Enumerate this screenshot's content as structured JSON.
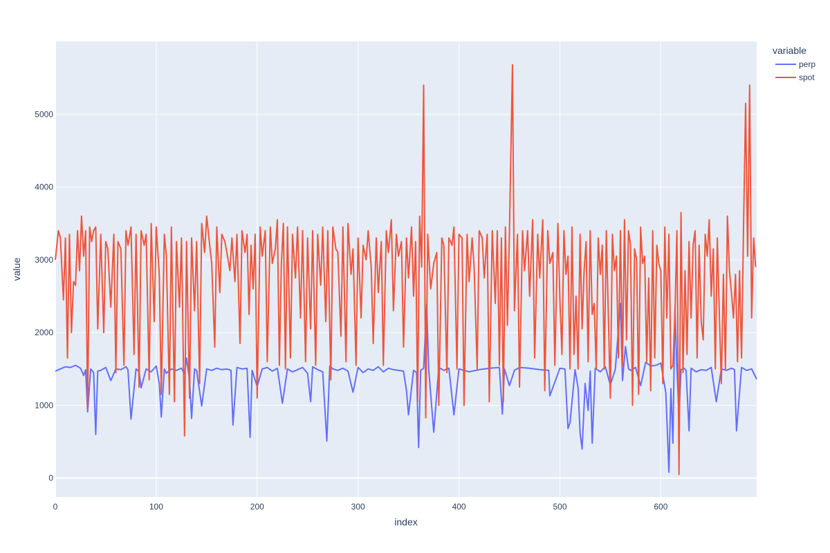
{
  "chart_data": {
    "type": "line",
    "xlabel": "index",
    "ylabel": "value",
    "xlim": [
      0,
      695
    ],
    "ylim": [
      -260,
      6000
    ],
    "x_ticks": [
      0,
      100,
      200,
      300,
      400,
      500,
      600
    ],
    "y_ticks": [
      0,
      1000,
      2000,
      3000,
      4000,
      5000
    ],
    "grid": true,
    "legend": {
      "title": "variable",
      "position": "top-right"
    },
    "colors": {
      "plot_bg": "#e5ecf6",
      "grid": "#ffffff",
      "perp": "#636efa",
      "spot": "#ef553b"
    },
    "series": [
      {
        "name": "perp",
        "x": [
          0,
          5,
          10,
          15,
          20,
          25,
          28,
          30,
          32,
          35,
          38,
          40,
          42,
          45,
          50,
          55,
          60,
          65,
          70,
          72,
          75,
          80,
          83,
          85,
          90,
          95,
          100,
          103,
          105,
          108,
          110,
          115,
          120,
          125,
          128,
          130,
          133,
          135,
          138,
          140,
          145,
          150,
          155,
          160,
          165,
          170,
          174,
          176,
          180,
          185,
          190,
          193,
          195,
          200,
          205,
          210,
          215,
          220,
          225,
          230,
          235,
          240,
          245,
          250,
          253,
          255,
          260,
          265,
          269,
          272,
          275,
          280,
          285,
          290,
          295,
          300,
          305,
          310,
          315,
          320,
          325,
          330,
          335,
          340,
          345,
          348,
          350,
          355,
          358,
          360,
          362,
          365,
          368,
          370,
          375,
          380,
          385,
          390,
          395,
          400,
          410,
          420,
          430,
          440,
          443,
          445,
          450,
          455,
          460,
          470,
          480,
          489,
          490,
          500,
          505,
          508,
          510,
          515,
          518,
          520,
          522,
          525,
          528,
          530,
          532,
          535,
          540,
          545,
          550,
          555,
          560,
          562,
          565,
          568,
          570,
          575,
          580,
          585,
          590,
          595,
          600,
          605,
          608,
          610,
          612,
          614,
          616,
          618,
          620,
          623,
          625,
          628,
          630,
          635,
          640,
          645,
          650,
          655,
          660,
          665,
          670,
          673,
          675,
          680,
          685,
          690,
          695
        ],
        "values": [
          1470,
          1500,
          1530,
          1520,
          1550,
          1510,
          1410,
          1490,
          910,
          1500,
          1450,
          600,
          1470,
          1480,
          1520,
          1340,
          1500,
          1490,
          1530,
          1490,
          810,
          1500,
          1460,
          1240,
          1500,
          1460,
          1540,
          1300,
          840,
          1500,
          1440,
          1500,
          1480,
          1510,
          1430,
          1650,
          1350,
          820,
          1500,
          1480,
          990,
          1500,
          1480,
          1510,
          1490,
          1500,
          1480,
          730,
          1520,
          1500,
          1510,
          560,
          1480,
          1260,
          1500,
          1520,
          1470,
          1510,
          1030,
          1500,
          1460,
          1490,
          1520,
          1440,
          1050,
          1530,
          1490,
          1460,
          510,
          1540,
          1500,
          1480,
          1510,
          1470,
          1180,
          1520,
          1450,
          1500,
          1480,
          1530,
          1460,
          1510,
          1490,
          1480,
          1470,
          1200,
          870,
          1480,
          1450,
          420,
          1480,
          1510,
          2390,
          1500,
          630,
          1520,
          1480,
          1510,
          870,
          1500,
          1460,
          1490,
          1510,
          1520,
          880,
          1500,
          1270,
          1480,
          1520,
          1510,
          1490,
          1480,
          1130,
          1510,
          1500,
          680,
          760,
          1490,
          1240,
          620,
          400,
          1300,
          930,
          1470,
          480,
          1510,
          1460,
          1530,
          1280,
          1500,
          2400,
          1340,
          1810,
          1500,
          1480,
          1520,
          1270,
          1590,
          1540,
          1550,
          1580,
          1170,
          80,
          1230,
          480,
          2330,
          1500,
          850,
          1490,
          1510,
          1480,
          650,
          1510,
          1460,
          1490,
          1480,
          1520,
          1050,
          1500,
          1480,
          1510,
          1490,
          650,
          1520,
          1480,
          1500,
          1360
        ]
      },
      {
        "name": "spot",
        "x": [
          0,
          3,
          5,
          8,
          10,
          12,
          14,
          16,
          18,
          20,
          22,
          24,
          26,
          28,
          30,
          32,
          34,
          36,
          38,
          40,
          42,
          45,
          48,
          50,
          52,
          55,
          58,
          60,
          62,
          65,
          68,
          70,
          72,
          75,
          78,
          80,
          83,
          85,
          88,
          90,
          93,
          95,
          98,
          100,
          103,
          105,
          108,
          110,
          113,
          115,
          118,
          120,
          123,
          125,
          128,
          130,
          133,
          135,
          138,
          140,
          143,
          145,
          148,
          150,
          153,
          155,
          158,
          160,
          163,
          165,
          168,
          170,
          173,
          175,
          178,
          180,
          183,
          185,
          188,
          190,
          192,
          194,
          196,
          198,
          200,
          203,
          205,
          208,
          210,
          213,
          215,
          218,
          220,
          222,
          224,
          226,
          228,
          230,
          233,
          235,
          238,
          240,
          243,
          245,
          248,
          250,
          253,
          255,
          258,
          260,
          263,
          265,
          268,
          270,
          273,
          275,
          278,
          280,
          283,
          285,
          288,
          290,
          293,
          295,
          298,
          300,
          303,
          305,
          308,
          310,
          313,
          315,
          318,
          320,
          323,
          325,
          328,
          330,
          333,
          335,
          338,
          340,
          343,
          345,
          348,
          350,
          353,
          355,
          357,
          359,
          361,
          363,
          365,
          367,
          369,
          372,
          375,
          378,
          380,
          383,
          385,
          388,
          390,
          393,
          395,
          398,
          400,
          403,
          405,
          408,
          410,
          413,
          415,
          418,
          420,
          423,
          425,
          428,
          430,
          433,
          436,
          438,
          440,
          442,
          444,
          446,
          448,
          450,
          453,
          455,
          458,
          460,
          463,
          465,
          468,
          470,
          473,
          475,
          478,
          480,
          483,
          485,
          488,
          490,
          493,
          495,
          498,
          500,
          502,
          504,
          506,
          508,
          510,
          512,
          514,
          516,
          518,
          520,
          522,
          524,
          526,
          528,
          530,
          532,
          534,
          536,
          538,
          540,
          542,
          544,
          546,
          548,
          550,
          552,
          554,
          556,
          558,
          560,
          562,
          564,
          566,
          568,
          570,
          572,
          574,
          576,
          578,
          580,
          582,
          584,
          586,
          588,
          590,
          592,
          594,
          596,
          598,
          600,
          602,
          604,
          606,
          608,
          610,
          612,
          614,
          616,
          618,
          620,
          622,
          624,
          626,
          628,
          630,
          632,
          634,
          636,
          638,
          640,
          642,
          644,
          646,
          648,
          650,
          652,
          654,
          656,
          658,
          660,
          662,
          664,
          666,
          668,
          670,
          672,
          674,
          676,
          678,
          680,
          682,
          684,
          686,
          688,
          690,
          692,
          694
        ],
        "values": [
          3000,
          3400,
          3300,
          2450,
          3300,
          1650,
          3350,
          2000,
          2700,
          2650,
          3400,
          2850,
          3600,
          3050,
          3400,
          950,
          3450,
          3250,
          3400,
          3450,
          2050,
          3350,
          2000,
          3250,
          3150,
          2350,
          3350,
          1450,
          3250,
          3150,
          1550,
          3400,
          3200,
          3450,
          1700,
          3350,
          1250,
          3400,
          3200,
          3350,
          1350,
          3500,
          2150,
          3450,
          2800,
          1150,
          3350,
          3050,
          1150,
          3450,
          1050,
          3250,
          2350,
          3300,
          580,
          3250,
          1100,
          3300,
          2300,
          3250,
          1300,
          3500,
          3100,
          3600,
          3200,
          2950,
          1800,
          3450,
          2550,
          3350,
          3250,
          3100,
          2850,
          3300,
          2700,
          3350,
          1850,
          3400,
          3100,
          3350,
          2250,
          3200,
          2600,
          3350,
          1100,
          3450,
          3050,
          3400,
          1600,
          3450,
          2950,
          3150,
          3550,
          1550,
          2950,
          3500,
          1500,
          3450,
          1650,
          3350,
          2750,
          3450,
          2200,
          3400,
          1600,
          3300,
          2050,
          3400,
          1550,
          3350,
          2650,
          3450,
          2150,
          3400,
          1350,
          3450,
          3150,
          3100,
          1950,
          3450,
          1600,
          3500,
          2800,
          3150,
          1550,
          3300,
          2200,
          3200,
          3000,
          3400,
          2900,
          1850,
          3300,
          2550,
          3250,
          1550,
          3400,
          3100,
          3550,
          2300,
          3350,
          3050,
          3250,
          1800,
          3300,
          2750,
          3450,
          2500,
          3250,
          1050,
          3600,
          2900,
          5400,
          830,
          3350,
          2600,
          2950,
          3100,
          1000,
          3300,
          3200,
          1450,
          3300,
          3200,
          3450,
          1500,
          3350,
          3300,
          1000,
          3350,
          2700,
          3300,
          2900,
          1500,
          3400,
          3300,
          2750,
          3350,
          1050,
          3400,
          2400,
          3400,
          1550,
          3300,
          1050,
          3450,
          2100,
          3350,
          5680,
          2300,
          3350,
          1250,
          3400,
          2850,
          3400,
          2500,
          3550,
          1650,
          3350,
          2750,
          3550,
          1200,
          3400,
          2950,
          3100,
          1550,
          3500,
          2450,
          1700,
          3400,
          2800,
          3050,
          1500,
          3450,
          1700,
          2500,
          1500,
          3350,
          2050,
          2850,
          3250,
          1600,
          3400,
          2250,
          2400,
          1500,
          3300,
          2800,
          3200,
          1500,
          3400,
          2250,
          1100,
          3350,
          2850,
          3050,
          1650,
          3400,
          1550,
          3550,
          1900,
          3400,
          3200,
          1000,
          3150,
          3000,
          1150,
          3450,
          2950,
          3050,
          1600,
          2750,
          1200,
          3400,
          1650,
          3200,
          2950,
          2850,
          1300,
          3450,
          2200,
          3350,
          1500,
          1550,
          2250,
          3400,
          50,
          3650,
          1450,
          2850,
          1700,
          3250,
          2200,
          3200,
          3400,
          1650,
          3200,
          2150,
          1900,
          3350,
          3050,
          3550,
          2500,
          3150,
          1500,
          3300,
          2250,
          1300,
          2800,
          1500,
          3600,
          2850,
          2550,
          2200,
          2800,
          1600,
          2850,
          1650,
          3450,
          5150,
          3050,
          5400,
          2200,
          3300,
          2900
        ]
      }
    ]
  }
}
